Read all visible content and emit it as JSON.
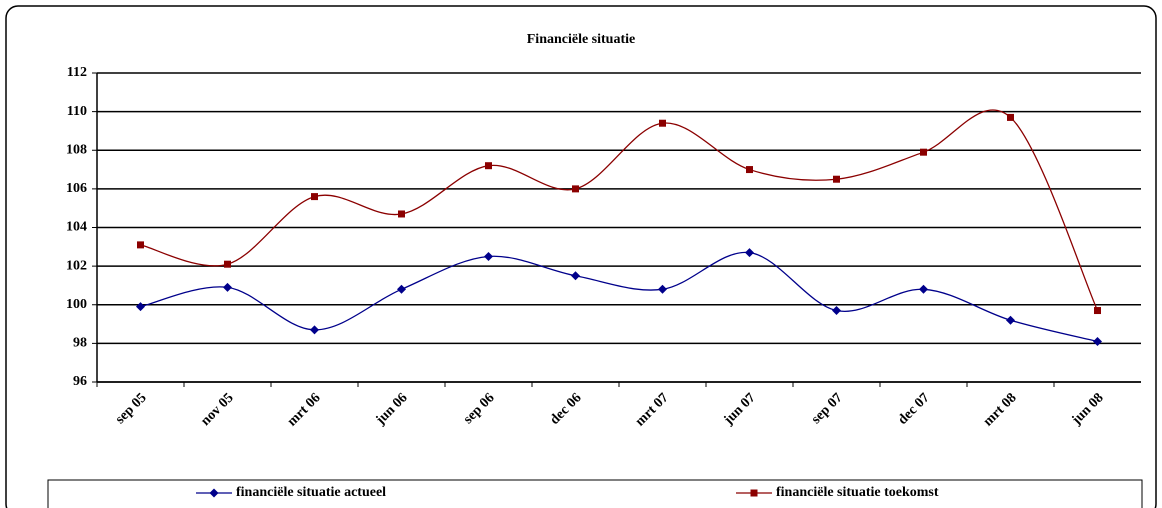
{
  "chart_data": {
    "type": "line",
    "title": "Financiële situatie",
    "categories": [
      "sep 05",
      "nov 05",
      "mrt 06",
      "jun 06",
      "sep 06",
      "dec 06",
      "mrt 07",
      "jun 07",
      "sep 07",
      "dec 07",
      "mrt 08",
      "jun 08"
    ],
    "series": [
      {
        "name": "financiële situatie actueel",
        "color": "#00008b",
        "marker": "diamond",
        "values": [
          99.9,
          100.9,
          98.7,
          100.8,
          102.5,
          101.5,
          100.8,
          102.7,
          99.7,
          100.8,
          99.2,
          98.1
        ]
      },
      {
        "name": "financiële situatie toekomst",
        "color": "#8b0000",
        "marker": "square",
        "values": [
          103.1,
          102.1,
          105.6,
          104.7,
          107.2,
          106.0,
          109.4,
          107.0,
          106.5,
          107.9,
          109.7,
          99.7
        ]
      }
    ],
    "ylim": [
      96,
      112
    ],
    "yticks": [
      96,
      98,
      100,
      102,
      104,
      106,
      108,
      110,
      112
    ],
    "grid": true,
    "smooth": true,
    "legend": "bottom"
  }
}
